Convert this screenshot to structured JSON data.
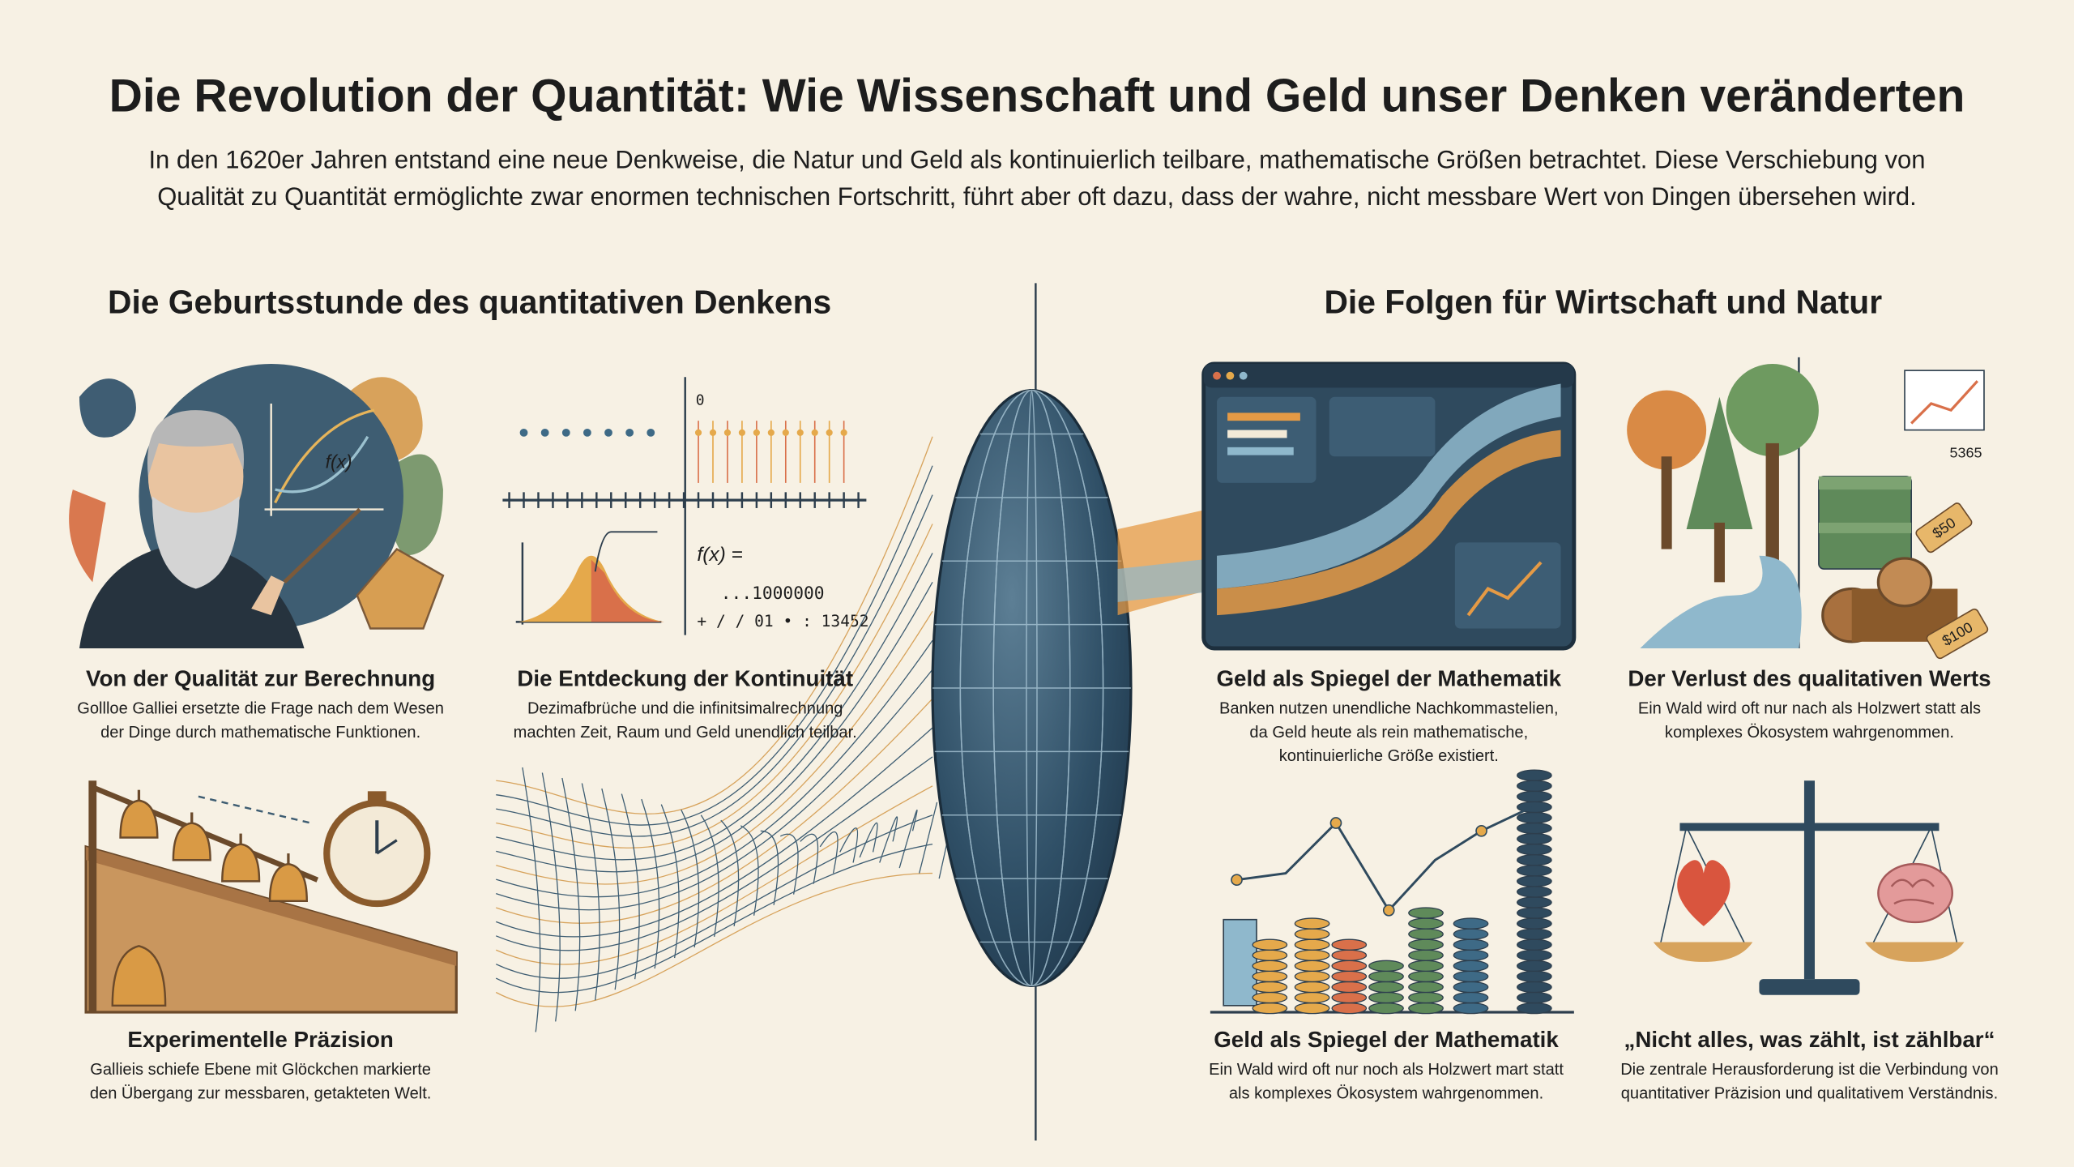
{
  "header": {
    "title": "Die Revolution der Quantität: Wie Wissenschaft und Geld unser Denken veränderten",
    "intro": [
      "In den 1620er Jahren entstand eine neue Denkweise, die Natur und Geld als kontinuierlich teilbare, mathematische Größen betrachtet. Diese Verschiebung von",
      "Qualität zu Quantität ermöglichte zwar enormen technischen Fortschritt, führt aber oft dazu, dass der wahre, nicht messbare Wert von Dingen übersehen wird."
    ]
  },
  "left": {
    "heading": "Die Geburtsstunde des quantitativen Denkens",
    "panels": [
      {
        "title": "Von der Qualität zur Berechnung",
        "text": [
          "Gollloe Galliei ersetzte die Frage nach dem Wesen",
          "der Dinge durch mathematische Funktionen."
        ]
      },
      {
        "title": "Die Entdeckung der Kontinuität",
        "text": [
          "Dezimafbrüche und die infinitsimalrechnung",
          "machten Zeit, Raum und Geld unendlich teilbar."
        ]
      },
      {
        "title": "Experimentelle Präzision",
        "text": [
          "Gallieis schiefe Ebene mit Glöckchen markierte",
          "den Übergang zur messbaren, getakteten Welt."
        ]
      }
    ]
  },
  "right": {
    "heading": "Die Folgen für Wirtschaft und Natur",
    "panels": [
      {
        "title": "Geld als Spiegel der Mathematik",
        "text": [
          "Banken nutzen unendliche Nachkommastelien,",
          "da Geld heute als rein mathematische,",
          "kontinuierliche Größe existiert."
        ]
      },
      {
        "title": "Der Verlust des qualitativen Werts",
        "text": [
          "Ein Wald wird oft nur nach als Holzwert statt als",
          "komplexes Ökosystem wahrgenommen."
        ]
      },
      {
        "title": "Geld als Spiegel der Mathematik",
        "text": [
          "Ein Wald wird oft nur noch als Holzwert mart statt",
          "als komplexes Ökosystem wahrgenommen."
        ]
      },
      {
        "title": "„Nicht alles, was zählt, ist zählbar“",
        "text": [
          "Die zentrale Herausforderung ist die Verbindung von",
          "quantitativer Präzision und qualitativem Verständnis."
        ]
      }
    ]
  },
  "illustration_labels": {
    "function": "f(x)",
    "function_eq": "f(x) =",
    "zero": "0",
    "decimals": "...1000000",
    "digits": "+ / / 01 • : 13452",
    "stock": "5365",
    "tag_small": "$50",
    "tag_large": "$100"
  }
}
